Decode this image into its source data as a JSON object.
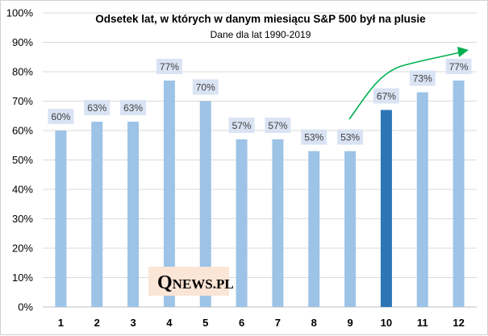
{
  "chart_data": {
    "type": "bar",
    "title": "Odsetek lat, w których w danym miesiącu S&P 500 był na plusie",
    "subtitle": "Dane dla lat 1990-2019",
    "categories": [
      "1",
      "2",
      "3",
      "4",
      "5",
      "6",
      "7",
      "8",
      "9",
      "10",
      "11",
      "12"
    ],
    "values": [
      60,
      63,
      63,
      77,
      70,
      57,
      57,
      53,
      53,
      67,
      73,
      77
    ],
    "data_labels": [
      "60%",
      "63%",
      "63%",
      "77%",
      "70%",
      "57%",
      "57%",
      "53%",
      "53%",
      "67%",
      "73%",
      "77%"
    ],
    "highlight_category": "10",
    "ylim": [
      0,
      100
    ],
    "yticks": [
      "0%",
      "10%",
      "20%",
      "30%",
      "40%",
      "50%",
      "60%",
      "70%",
      "80%",
      "90%",
      "100%"
    ],
    "grid": true,
    "legend": "none",
    "colors": {
      "bar": "#9dc3e6",
      "bar_highlight": "#2e75b6",
      "label_background": "#dae3f3",
      "grid": "#d9d9d9",
      "arrow": "#00b050"
    }
  },
  "watermark": {
    "initial": "Q",
    "rest": "NEWS.PL",
    "background": "#fbe5d6"
  }
}
